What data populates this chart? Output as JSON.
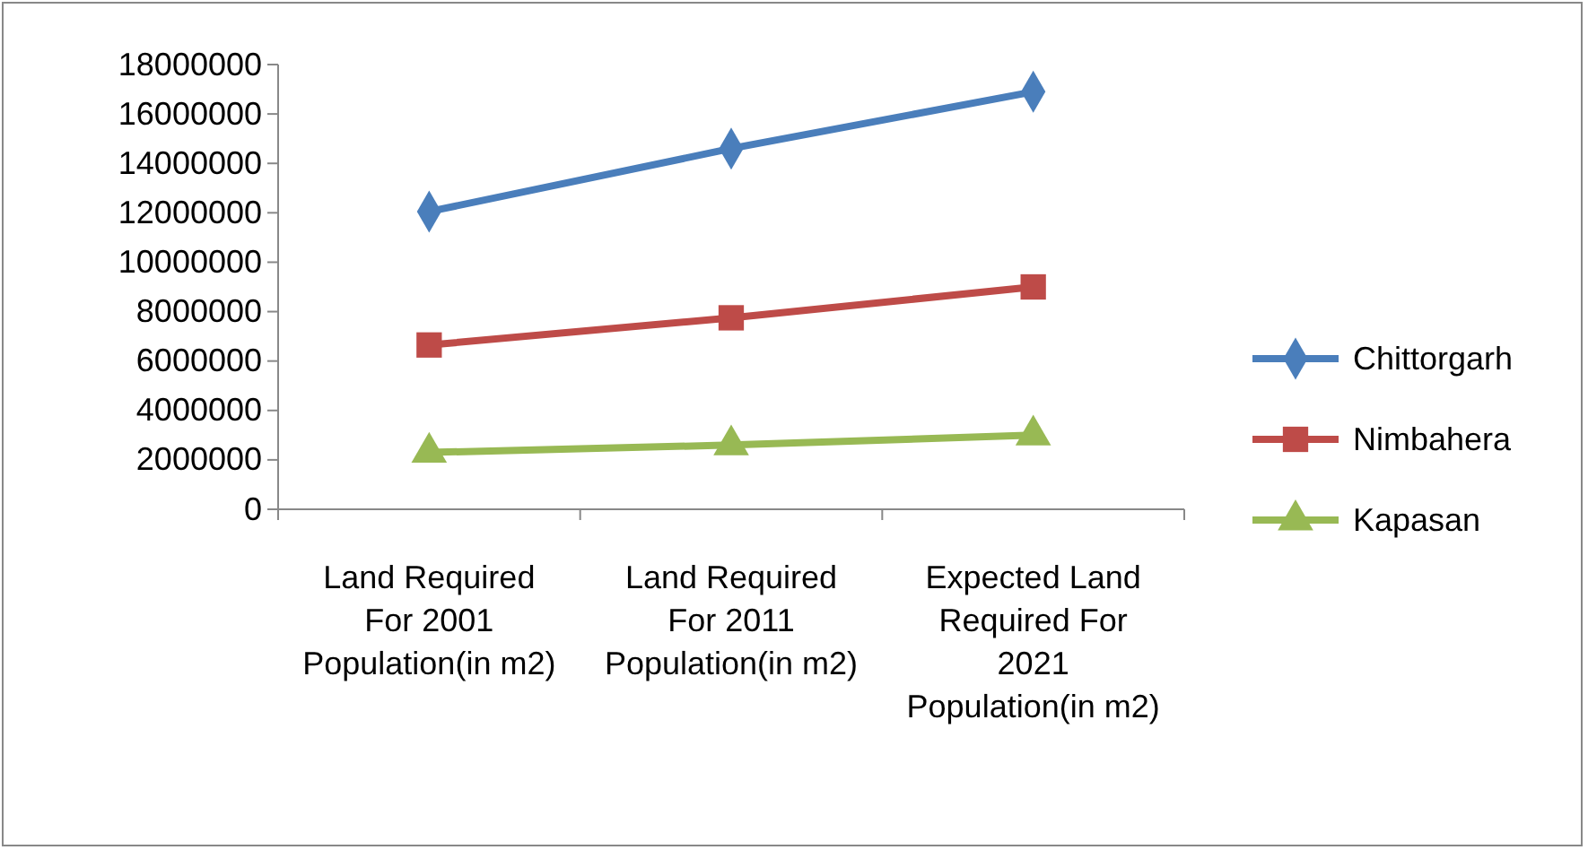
{
  "chart_data": {
    "type": "line",
    "categories": [
      "Land Required For 2001 Population(in m2)",
      "Land Required For 2011 Population(in m2)",
      "Expected Land Required For 2021 Population(in m2)"
    ],
    "series": [
      {
        "name": "Chittorgarh",
        "color": "#4a7ebb",
        "marker": "diamond",
        "values": [
          12050000,
          14600000,
          16900000
        ]
      },
      {
        "name": "Nimbahera",
        "color": "#be4b48",
        "marker": "square",
        "values": [
          6650000,
          7750000,
          9000000
        ]
      },
      {
        "name": "Kapasan",
        "color": "#98b954",
        "marker": "triangle",
        "values": [
          2300000,
          2600000,
          3000000
        ]
      }
    ],
    "ylim": [
      0,
      18000000
    ],
    "yticks": [
      0,
      2000000,
      4000000,
      6000000,
      8000000,
      10000000,
      12000000,
      14000000,
      16000000,
      18000000
    ],
    "grid": false,
    "legend": "right",
    "line_style": "solid"
  }
}
